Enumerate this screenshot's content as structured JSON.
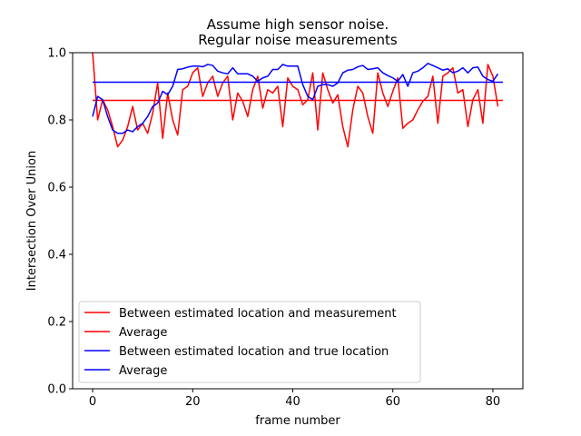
{
  "chart_data": {
    "type": "line",
    "title": "Assume high sensor noise.",
    "subtitle": "Regular noise measurements",
    "xlabel": "frame number",
    "ylabel": "Intersection Over Union",
    "xlim": [
      -4,
      86
    ],
    "ylim": [
      0,
      1
    ],
    "xticks": [
      0,
      20,
      40,
      60,
      80
    ],
    "yticks": [
      0.0,
      0.2,
      0.4,
      0.6,
      0.8,
      1.0
    ],
    "ytick_labels": [
      "0.0",
      "0.2",
      "0.4",
      "0.6",
      "0.8",
      "1.0"
    ],
    "legend_position": "lower-left",
    "grid": false,
    "series": [
      {
        "name": "Between estimated location and measurement",
        "color": "#ff0000",
        "x": [
          0,
          1,
          2,
          3,
          4,
          5,
          6,
          7,
          8,
          9,
          10,
          11,
          12,
          13,
          14,
          15,
          16,
          17,
          18,
          19,
          20,
          21,
          22,
          23,
          24,
          25,
          26,
          27,
          28,
          29,
          30,
          31,
          32,
          33,
          34,
          35,
          36,
          37,
          38,
          39,
          40,
          41,
          42,
          43,
          44,
          45,
          46,
          47,
          48,
          49,
          50,
          51,
          52,
          53,
          54,
          55,
          56,
          57,
          58,
          59,
          60,
          61,
          62,
          63,
          64,
          65,
          66,
          67,
          68,
          69,
          70,
          71,
          72,
          73,
          74,
          75,
          76,
          77,
          78,
          79,
          80,
          81
        ],
        "values": [
          1.0,
          0.8,
          0.86,
          0.83,
          0.78,
          0.72,
          0.74,
          0.78,
          0.84,
          0.77,
          0.79,
          0.76,
          0.82,
          0.91,
          0.745,
          0.88,
          0.8,
          0.755,
          0.89,
          0.9,
          0.94,
          0.955,
          0.87,
          0.91,
          0.93,
          0.87,
          0.91,
          0.93,
          0.8,
          0.88,
          0.855,
          0.81,
          0.89,
          0.93,
          0.835,
          0.89,
          0.88,
          0.9,
          0.78,
          0.925,
          0.9,
          0.89,
          0.845,
          0.86,
          0.94,
          0.77,
          0.94,
          0.89,
          0.85,
          0.875,
          0.78,
          0.72,
          0.83,
          0.9,
          0.88,
          0.81,
          0.76,
          0.94,
          0.88,
          0.84,
          0.885,
          0.925,
          0.775,
          0.79,
          0.8,
          0.83,
          0.855,
          0.87,
          0.93,
          0.79,
          0.93,
          0.94,
          0.955,
          0.88,
          0.89,
          0.78,
          0.86,
          0.89,
          0.79,
          0.965,
          0.93,
          0.84
        ]
      },
      {
        "name": "Average",
        "color": "#ff0000",
        "x": [
          0,
          82
        ],
        "values": [
          0.858,
          0.858
        ]
      },
      {
        "name": "Between estimated location and true location",
        "color": "#0000ff",
        "x": [
          0,
          1,
          2,
          3,
          4,
          5,
          6,
          7,
          8,
          9,
          10,
          11,
          12,
          13,
          14,
          15,
          16,
          17,
          18,
          19,
          20,
          21,
          22,
          23,
          24,
          25,
          26,
          27,
          28,
          29,
          30,
          31,
          32,
          33,
          34,
          35,
          36,
          37,
          38,
          39,
          40,
          41,
          42,
          43,
          44,
          45,
          46,
          47,
          48,
          49,
          50,
          51,
          52,
          53,
          54,
          55,
          56,
          57,
          58,
          59,
          60,
          61,
          62,
          63,
          64,
          65,
          66,
          67,
          68,
          69,
          70,
          71,
          72,
          73,
          74,
          75,
          76,
          77,
          78,
          79,
          80,
          81
        ],
        "values": [
          0.81,
          0.87,
          0.86,
          0.81,
          0.77,
          0.76,
          0.76,
          0.77,
          0.765,
          0.78,
          0.79,
          0.81,
          0.84,
          0.85,
          0.885,
          0.875,
          0.9,
          0.95,
          0.952,
          0.957,
          0.96,
          0.96,
          0.958,
          0.965,
          0.962,
          0.945,
          0.94,
          0.937,
          0.955,
          0.937,
          0.937,
          0.937,
          0.93,
          0.915,
          0.925,
          0.93,
          0.95,
          0.95,
          0.965,
          0.96,
          0.96,
          0.96,
          0.905,
          0.87,
          0.86,
          0.9,
          0.905,
          0.905,
          0.9,
          0.91,
          0.94,
          0.948,
          0.95,
          0.958,
          0.962,
          0.95,
          0.952,
          0.955,
          0.94,
          0.932,
          0.925,
          0.915,
          0.935,
          0.9,
          0.94,
          0.945,
          0.955,
          0.968,
          0.962,
          0.955,
          0.948,
          0.952,
          0.94,
          0.945,
          0.955,
          0.94,
          0.955,
          0.957,
          0.93,
          0.92,
          0.915,
          0.937
        ]
      },
      {
        "name": "Average",
        "color": "#0000ff",
        "x": [
          0,
          82
        ],
        "values": [
          0.912,
          0.912
        ]
      }
    ]
  }
}
